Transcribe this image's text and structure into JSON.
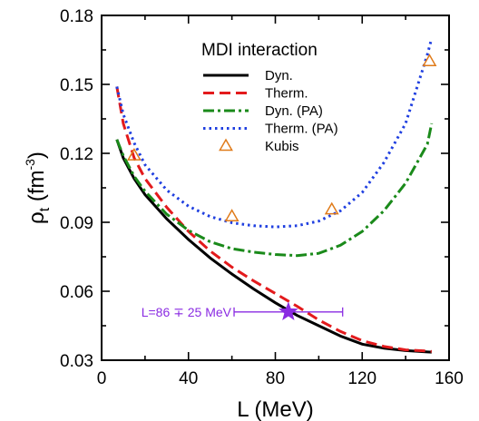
{
  "chart_data": {
    "type": "line",
    "xlabel": "L (MeV)",
    "ylabel": "ρt (fm-3)",
    "ylabel_parts": {
      "symbol": "ρ",
      "sub": "t",
      "unit_open": " (fm",
      "sup": "-3",
      "unit_close": ")"
    },
    "xlim": [
      0,
      160
    ],
    "ylim": [
      0.03,
      0.18
    ],
    "x_ticks": [
      0,
      40,
      80,
      120,
      160
    ],
    "y_ticks": [
      0.03,
      0.06,
      0.09,
      0.12,
      0.15,
      0.18
    ],
    "x_tick_labels": [
      "0",
      "40",
      "80",
      "120",
      "160"
    ],
    "y_tick_labels": [
      "0.03",
      "0.06",
      "0.09",
      "0.12",
      "0.15",
      "0.18"
    ],
    "grid": false,
    "legend": {
      "title": "MDI interaction",
      "placement": "top-center"
    },
    "series": [
      {
        "name": "Dyn.",
        "color": "#000000",
        "style": "solid",
        "x": [
          7,
          10,
          15,
          20,
          30,
          40,
          50,
          60,
          70,
          80,
          90,
          100,
          110,
          120,
          130,
          140,
          150,
          152
        ],
        "y": [
          0.126,
          0.118,
          0.109,
          0.102,
          0.0915,
          0.0825,
          0.0745,
          0.0675,
          0.061,
          0.055,
          0.0495,
          0.045,
          0.0405,
          0.037,
          0.0352,
          0.0342,
          0.0336,
          0.0335
        ]
      },
      {
        "name": "Therm.",
        "color": "#e31a1c",
        "style": "dashed",
        "x": [
          7,
          10,
          15,
          20,
          30,
          40,
          50,
          60,
          70,
          80,
          90,
          100,
          110,
          120,
          130,
          140,
          150,
          152
        ],
        "y": [
          0.149,
          0.133,
          0.118,
          0.109,
          0.0965,
          0.086,
          0.0775,
          0.0705,
          0.0645,
          0.059,
          0.0535,
          0.0475,
          0.0425,
          0.0385,
          0.036,
          0.0345,
          0.034,
          0.0338
        ]
      },
      {
        "name": "Dyn. (PA)",
        "color": "#1a8a1a",
        "style": "dashdot",
        "x": [
          7,
          10,
          15,
          20,
          30,
          40,
          50,
          60,
          70,
          80,
          90,
          100,
          110,
          120,
          130,
          140,
          150,
          152
        ],
        "y": [
          0.126,
          0.119,
          0.11,
          0.1035,
          0.0935,
          0.0865,
          0.0815,
          0.0785,
          0.077,
          0.076,
          0.0755,
          0.0765,
          0.08,
          0.086,
          0.095,
          0.107,
          0.124,
          0.133
        ]
      },
      {
        "name": "Therm. (PA)",
        "color": "#1f3fe0",
        "style": "dotted",
        "x": [
          7,
          10,
          15,
          20,
          30,
          40,
          50,
          60,
          70,
          80,
          90,
          100,
          110,
          120,
          130,
          140,
          150,
          152
        ],
        "y": [
          0.149,
          0.137,
          0.1245,
          0.115,
          0.104,
          0.097,
          0.0925,
          0.0898,
          0.0885,
          0.088,
          0.0885,
          0.0905,
          0.095,
          0.103,
          0.116,
          0.133,
          0.163,
          0.17
        ]
      },
      {
        "name": "Kubis",
        "color": "#e07b1a",
        "style": "marker-triangle-open",
        "x": [
          15,
          60,
          106,
          151
        ],
        "y": [
          0.119,
          0.0925,
          0.0955,
          0.16
        ]
      }
    ],
    "annotation": {
      "text": "L=86 ∓ 25 MeV",
      "x": 86,
      "x_err": 25,
      "y": 0.051,
      "color": "#8a2be2",
      "marker": "star"
    }
  }
}
